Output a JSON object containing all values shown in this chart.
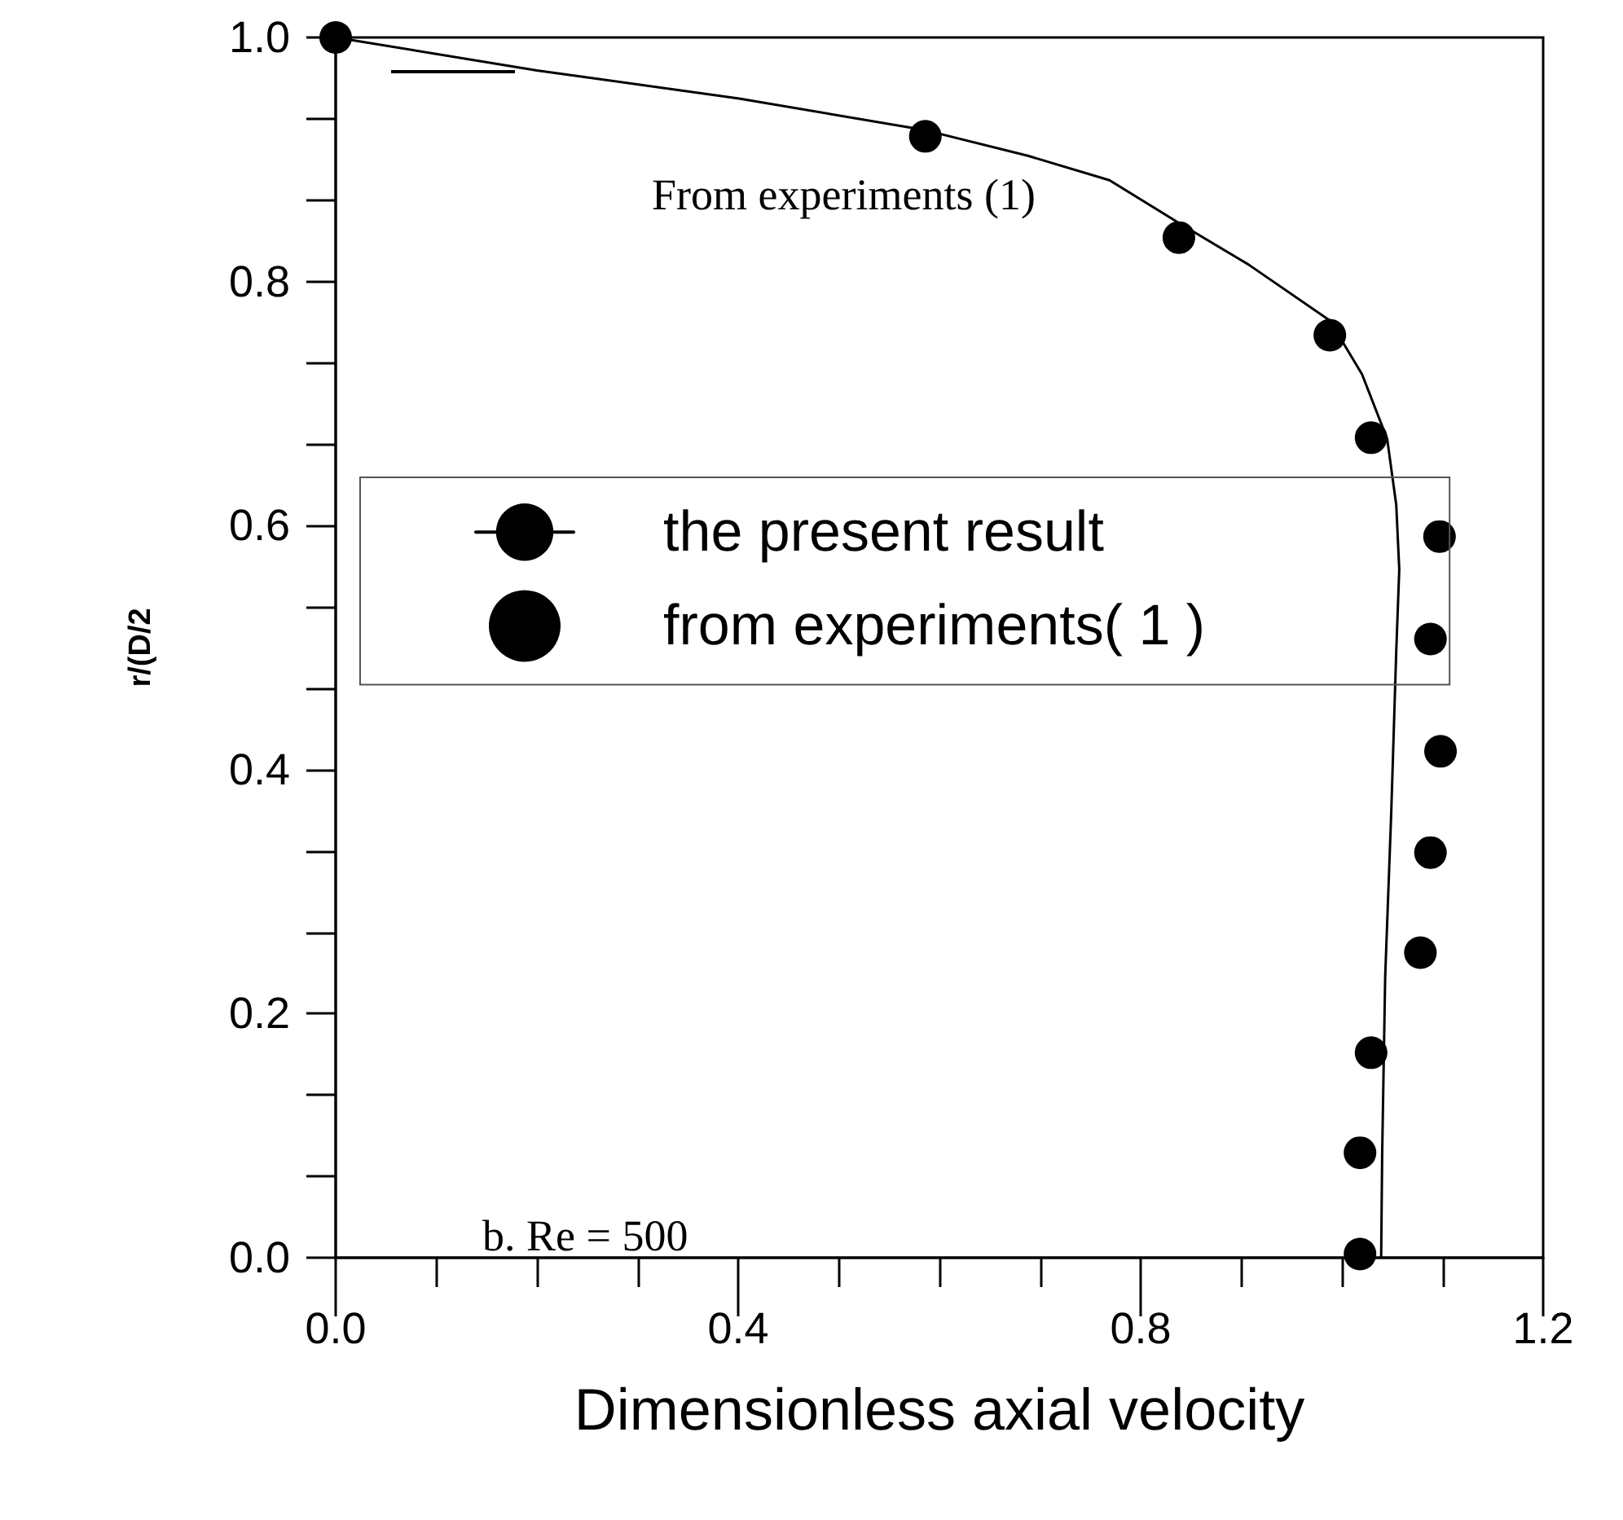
{
  "chart_data": {
    "type": "scatter",
    "xlabel": "Dimensionless axial velocity",
    "ylabel": "r/(D/2",
    "annotations": [
      "From experiments (1)",
      "b. Re = 500"
    ],
    "xlim": [
      0,
      1.2
    ],
    "ylim": [
      0,
      1.0
    ],
    "xticks": [
      {
        "value": 0,
        "label": "0.0"
      },
      0.4,
      0.8,
      1.2
    ],
    "yticks": [
      {
        "value": 0,
        "label": "0.0"
      },
      0.2,
      0.4,
      0.6,
      0.8,
      {
        "value": 1.0,
        "label": "1.0"
      }
    ],
    "grid": false,
    "legend": "left",
    "series": [
      {
        "name": "the present result",
        "type": "line",
        "color": "#000000",
        "line_style": "solid",
        "marker": "none",
        "x": [
          0,
          0.2,
          0.401,
          0.586,
          0.688,
          0.769,
          0.838,
          0.907,
          0.988,
          1.02,
          1.045,
          1.054,
          1.057,
          1.054,
          1.049,
          1.043,
          1.04,
          1.039
        ],
        "values": [
          1.0,
          0.973,
          0.95,
          0.924,
          0.903,
          0.883,
          0.848,
          0.814,
          0.768,
          0.724,
          0.671,
          0.617,
          0.564,
          0.497,
          0.364,
          0.23,
          0.084,
          0
        ]
      },
      {
        "name": "from experiments( 1 )",
        "type": "scatter",
        "color": "#000000",
        "marker": "circle",
        "x": [
          0,
          0.586,
          0.838,
          0.988,
          1.029,
          1.097,
          1.088,
          1.098,
          1.088,
          1.078,
          1.029,
          1.018,
          1.018
        ],
        "values": [
          1.0,
          0.919,
          0.836,
          0.756,
          0.672,
          0.591,
          0.507,
          0.415,
          0.332,
          0.25,
          0.168,
          0.086,
          0.003
        ]
      }
    ]
  }
}
